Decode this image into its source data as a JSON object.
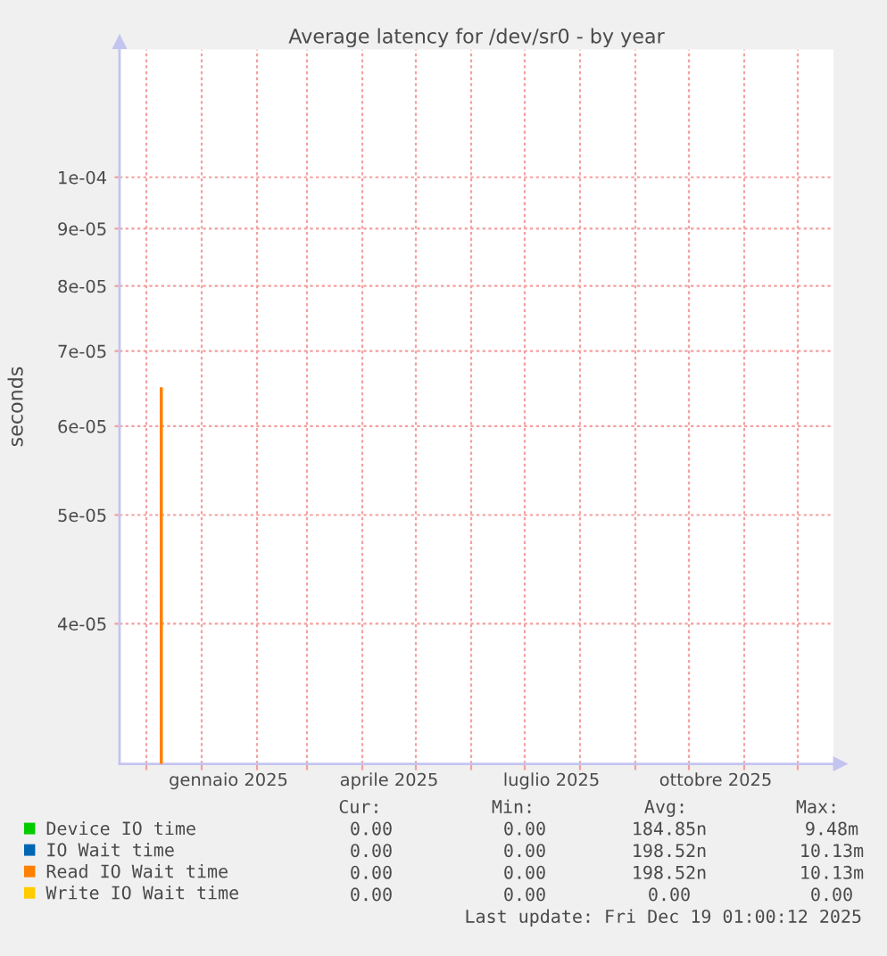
{
  "chart_data": {
    "type": "bar",
    "title": "Average latency for /dev/sr0 - by year",
    "ylabel": "seconds",
    "log": true,
    "grid": true,
    "legend": "bottom",
    "xlim": [
      "2024-11-16",
      "2025-12-21"
    ],
    "xticks": [
      {
        "value": "2024-12-01",
        "label": null
      },
      {
        "value": "2025-01-01",
        "label": null
      },
      {
        "value": "2025-01-16",
        "label": "gennaio 2025"
      },
      {
        "value": "2025-02-01",
        "label": null
      },
      {
        "value": "2025-03-01",
        "label": null
      },
      {
        "value": "2025-04-01",
        "label": null
      },
      {
        "value": "2025-04-16",
        "label": "aprile 2025"
      },
      {
        "value": "2025-05-01",
        "label": null
      },
      {
        "value": "2025-06-01",
        "label": null
      },
      {
        "value": "2025-07-01",
        "label": null
      },
      {
        "value": "2025-07-16",
        "label": "luglio 2025"
      },
      {
        "value": "2025-08-01",
        "label": null
      },
      {
        "value": "2025-09-01",
        "label": null
      },
      {
        "value": "2025-10-01",
        "label": null
      },
      {
        "value": "2025-10-16",
        "label": "ottobre 2025"
      },
      {
        "value": "2025-11-01",
        "label": null
      },
      {
        "value": "2025-12-01",
        "label": null
      }
    ],
    "ylim": [
      3e-05,
      0.00013
    ],
    "yticks": [
      {
        "value": 4e-05,
        "label": "4e-05"
      },
      {
        "value": 5e-05,
        "label": "5e-05"
      },
      {
        "value": 6e-05,
        "label": "6e-05"
      },
      {
        "value": 7e-05,
        "label": "7e-05"
      },
      {
        "value": 8e-05,
        "label": "8e-05"
      },
      {
        "value": 9e-05,
        "label": "9e-05"
      },
      {
        "value": 0.0001,
        "label": "1e-04"
      }
    ],
    "series": [
      {
        "name": "Device IO time",
        "color": "#00cc00"
      },
      {
        "name": "IO Wait time",
        "color": "#0066b3"
      },
      {
        "name": "Read IO Wait time",
        "color": "#ff8000",
        "x": [
          "2024-12-09T09:00"
        ],
        "values": [
          6.5e-05
        ]
      },
      {
        "name": "Write IO Wait time",
        "color": "#ffcc00"
      }
    ],
    "annotations": [
      "Cur:",
      "Min:",
      "Avg:",
      "Max:",
      "0.00",
      "0.00",
      "184.85n",
      "9.48m",
      "0.00",
      "0.00",
      "198.52n",
      "10.13m",
      "0.00",
      "0.00",
      "198.52n",
      "10.13m",
      "0.00",
      "0.00",
      "0.00",
      "0.00",
      "Last update: Fri Dec 19 01:00:12 2025"
    ]
  }
}
